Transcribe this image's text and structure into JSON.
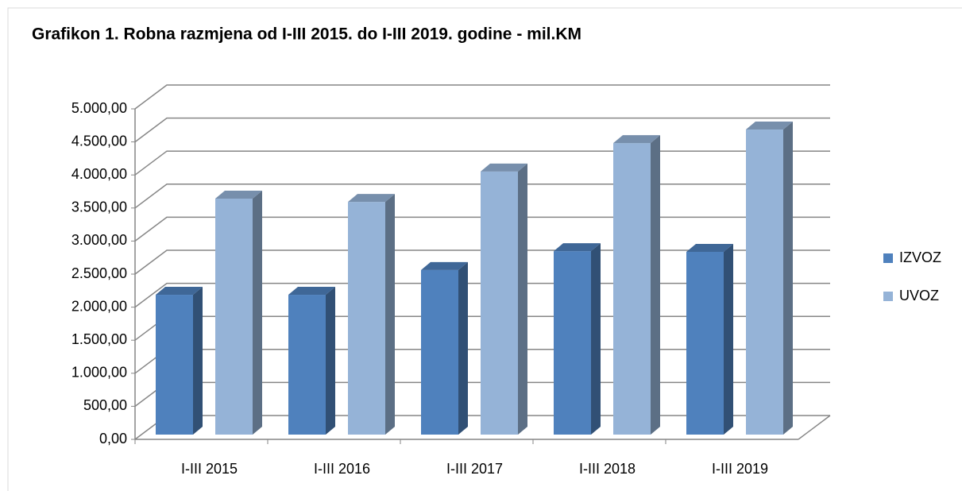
{
  "chart_data": {
    "type": "bar3d",
    "title": "Grafikon 1. Robna razmjena od I-III 2015. do I-III 2019. godine - mil.KM",
    "categories": [
      "I-III 2015",
      "I-III 2016",
      "I-III 2017",
      "I-III 2018",
      "I-III 2019"
    ],
    "series": [
      {
        "name": "IZVOZ",
        "color": "#4f81bd",
        "values": [
          2115,
          2115,
          2490,
          2775,
          2765
        ]
      },
      {
        "name": "UVOZ",
        "color": "#95b3d7",
        "values": [
          3570,
          3520,
          3980,
          4410,
          4615
        ]
      }
    ],
    "ylim": [
      0,
      5000
    ],
    "yticks": [
      {
        "value": 0,
        "label": "0,00"
      },
      {
        "value": 500,
        "label": "500,00"
      },
      {
        "value": 1000,
        "label": "1.000,00"
      },
      {
        "value": 1500,
        "label": "1.500,00"
      },
      {
        "value": 2000,
        "label": "2.000,00"
      },
      {
        "value": 2500,
        "label": "2.500,00"
      },
      {
        "value": 3000,
        "label": "3.000,00"
      },
      {
        "value": 3500,
        "label": "3.500,00"
      },
      {
        "value": 4000,
        "label": "4.000,00"
      },
      {
        "value": 4500,
        "label": "4.500,00"
      },
      {
        "value": 5000,
        "label": "5.000,00"
      }
    ],
    "grid": true,
    "legend": "right"
  }
}
